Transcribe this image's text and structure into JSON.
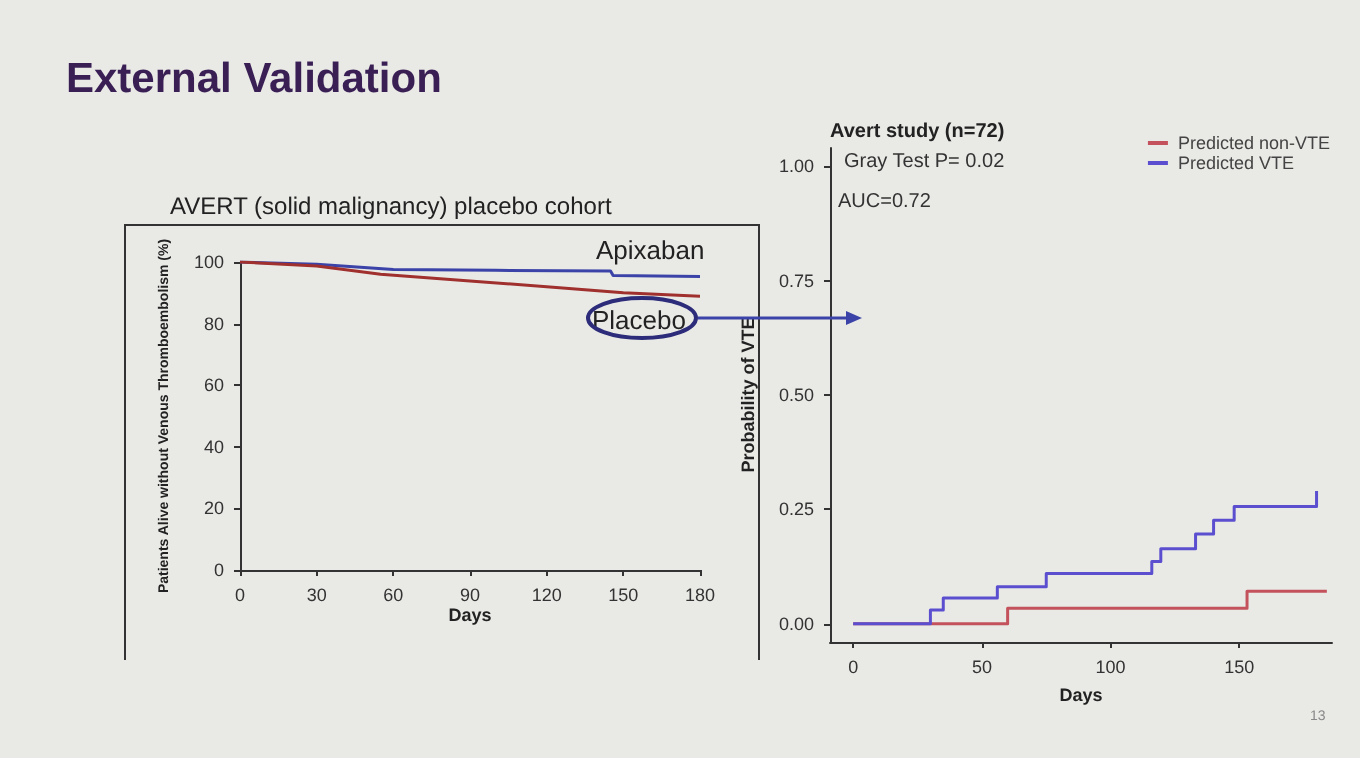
{
  "chart_data": [
    {
      "type": "line",
      "title": "External Validation",
      "subtitle": "AVERT (solid malignancy) placebo cohort",
      "xlabel": "Days",
      "ylabel": "Patients Alive without Venous Thromboembolism (%)",
      "xlim": [
        0,
        180
      ],
      "xticks": [
        0,
        30,
        60,
        90,
        120,
        150,
        180
      ],
      "ylim": [
        0,
        100
      ],
      "yticks": [
        0,
        20,
        40,
        60,
        80,
        100
      ],
      "series": [
        {
          "name": "Apixaban",
          "color": "#3b43a8",
          "x": [
            0,
            30,
            60,
            100,
            145,
            146,
            180
          ],
          "values": [
            100,
            99.3,
            97.6,
            97.3,
            97.1,
            95.6,
            95.3
          ]
        },
        {
          "name": "Placebo",
          "color": "#a0302e",
          "x": [
            0,
            30,
            55,
            90,
            120,
            150,
            180
          ],
          "values": [
            100,
            98.7,
            96,
            93.8,
            92,
            90,
            88.9
          ]
        }
      ]
    },
    {
      "type": "step",
      "title": "Avert study (n=72)",
      "xlabel": "Days",
      "ylabel": "Probability of VTE",
      "legend": "top right",
      "xlim": [
        -9,
        186
      ],
      "xticks": [
        0,
        50,
        100,
        150
      ],
      "ylim": [
        -0.04,
        1.04
      ],
      "yticks": [
        {
          "value": 0,
          "label": "0.00"
        },
        {
          "value": 0.25,
          "label": "0.25"
        },
        {
          "value": 0.5,
          "label": "0.50"
        },
        {
          "value": 0.75,
          "label": "0.75"
        },
        {
          "value": 1,
          "label": "1.00"
        }
      ],
      "annotations": [
        "Gray Test P= 0.02",
        "AUC=0.72",
        "13"
      ],
      "series": [
        {
          "name": "Predicted non-VTE",
          "color": "#c4525c",
          "x": [
            0,
            60,
            153,
            184
          ],
          "values": [
            0,
            0.034,
            0.071,
            0.071
          ]
        },
        {
          "name": "Predicted VTE",
          "color": "#5b4fd0",
          "x": [
            0,
            30,
            35,
            56,
            75,
            116,
            119.5,
            133,
            140,
            148,
            180
          ],
          "values": [
            0,
            0.03,
            0.056,
            0.081,
            0.11,
            0.136,
            0.164,
            0.196,
            0.226,
            0.256,
            0.29
          ]
        }
      ]
    }
  ]
}
